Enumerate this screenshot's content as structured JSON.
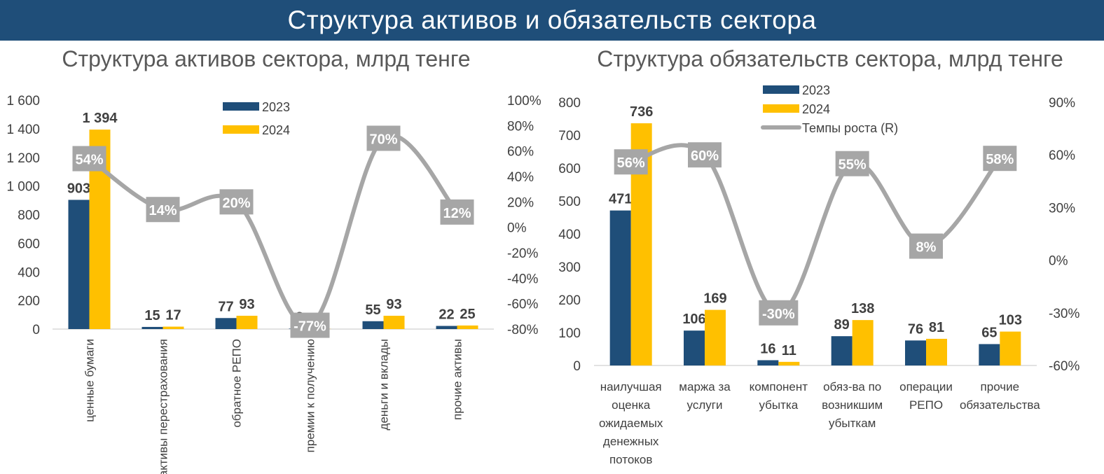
{
  "header": {
    "title": "Структура активов и обязательств сектора"
  },
  "colors": {
    "banner": "#1F4E79",
    "series_2023": "#1F4E79",
    "series_2024": "#FFC000",
    "growth_line": "#A6A6A6",
    "growth_label_bg": "#A6A6A6",
    "axis_text": "#404040",
    "title_text": "#595959"
  },
  "chart_data": [
    {
      "type": "bar",
      "title": "Структура активов сектора, млрд тенге",
      "categories": [
        "ценные бумаги",
        "активы перестрахования",
        "обратное РЕПО",
        "премии к получению",
        "деньги и вклады",
        "прочие активы"
      ],
      "series": [
        {
          "name": "2023",
          "values": [
            903,
            15,
            77,
            3,
            55,
            22
          ],
          "labels": [
            "903",
            "15",
            "77",
            "3",
            "55",
            "22"
          ]
        },
        {
          "name": "2024",
          "values": [
            1394,
            17,
            93,
            1,
            93,
            25
          ],
          "labels": [
            "1 394",
            "17",
            "93",
            "1",
            "93",
            "25"
          ]
        }
      ],
      "growth": {
        "values": [
          54,
          14,
          20,
          -77,
          70,
          12
        ],
        "labels": [
          "54%",
          "14%",
          "20%",
          "-77%",
          "70%",
          "12%"
        ]
      },
      "ylim": [
        0,
        1600
      ],
      "y_ticks": [
        0,
        200,
        400,
        600,
        800,
        1000,
        1200,
        1400,
        1600
      ],
      "y_tick_labels": [
        "0",
        "200",
        "400",
        "600",
        "800",
        "1 000",
        "1 200",
        "1 400",
        "1 600"
      ],
      "y2lim": [
        -80,
        100
      ],
      "y2_ticks": [
        -80,
        -60,
        -40,
        -20,
        0,
        20,
        40,
        60,
        80,
        100
      ],
      "y2_tick_labels": [
        "-80%",
        "-60%",
        "-40%",
        "-20%",
        "0%",
        "20%",
        "40%",
        "60%",
        "80%",
        "100%"
      ],
      "legend": {
        "placement": "top-center",
        "entries": [
          "2023",
          "2024"
        ]
      },
      "category_label_orientation": "vertical",
      "grid": false
    },
    {
      "type": "bar",
      "title": "Структура обязательств сектора, млрд тенге",
      "categories": [
        "наилучшая оценка ожидаемых денежных потоков",
        "маржа за услуги",
        "компонент убытка",
        "обяз-ва по возникшим убыткам",
        "операции РЕПО",
        "прочие обязательства"
      ],
      "category_lines": [
        [
          "наилучшая",
          "оценка",
          "ожидаемых",
          "денежных",
          "потоков"
        ],
        [
          "маржа за",
          "услуги"
        ],
        [
          "компонент",
          "убытка"
        ],
        [
          "обяз-ва по",
          "возникшим",
          "убыткам"
        ],
        [
          "операции",
          "РЕПО"
        ],
        [
          "прочие",
          "обязательства"
        ]
      ],
      "series": [
        {
          "name": "2023",
          "values": [
            471,
            106,
            16,
            89,
            76,
            65
          ],
          "labels": [
            "471",
            "106",
            "16",
            "89",
            "76",
            "65"
          ]
        },
        {
          "name": "2024",
          "values": [
            736,
            169,
            11,
            138,
            81,
            103
          ],
          "labels": [
            "736",
            "169",
            "11",
            "138",
            "81",
            "103"
          ]
        }
      ],
      "growth": {
        "name": "Темпы роста (R)",
        "values": [
          56,
          60,
          -30,
          55,
          8,
          58
        ],
        "labels": [
          "56%",
          "60%",
          "-30%",
          "55%",
          "8%",
          "58%"
        ]
      },
      "ylim": [
        0,
        800
      ],
      "y_ticks": [
        0,
        100,
        200,
        300,
        400,
        500,
        600,
        700,
        800
      ],
      "y_tick_labels": [
        "0",
        "100",
        "200",
        "300",
        "400",
        "500",
        "600",
        "700",
        "800"
      ],
      "y2lim": [
        -60,
        90
      ],
      "y2_ticks": [
        -60,
        -30,
        0,
        30,
        60,
        90
      ],
      "y2_tick_labels": [
        "-60%",
        "-30%",
        "0%",
        "30%",
        "60%",
        "90%"
      ],
      "legend": {
        "placement": "top-center",
        "entries": [
          "2023",
          "2024",
          "Темпы роста (R)"
        ]
      },
      "category_label_orientation": "horizontal",
      "grid": false
    }
  ]
}
